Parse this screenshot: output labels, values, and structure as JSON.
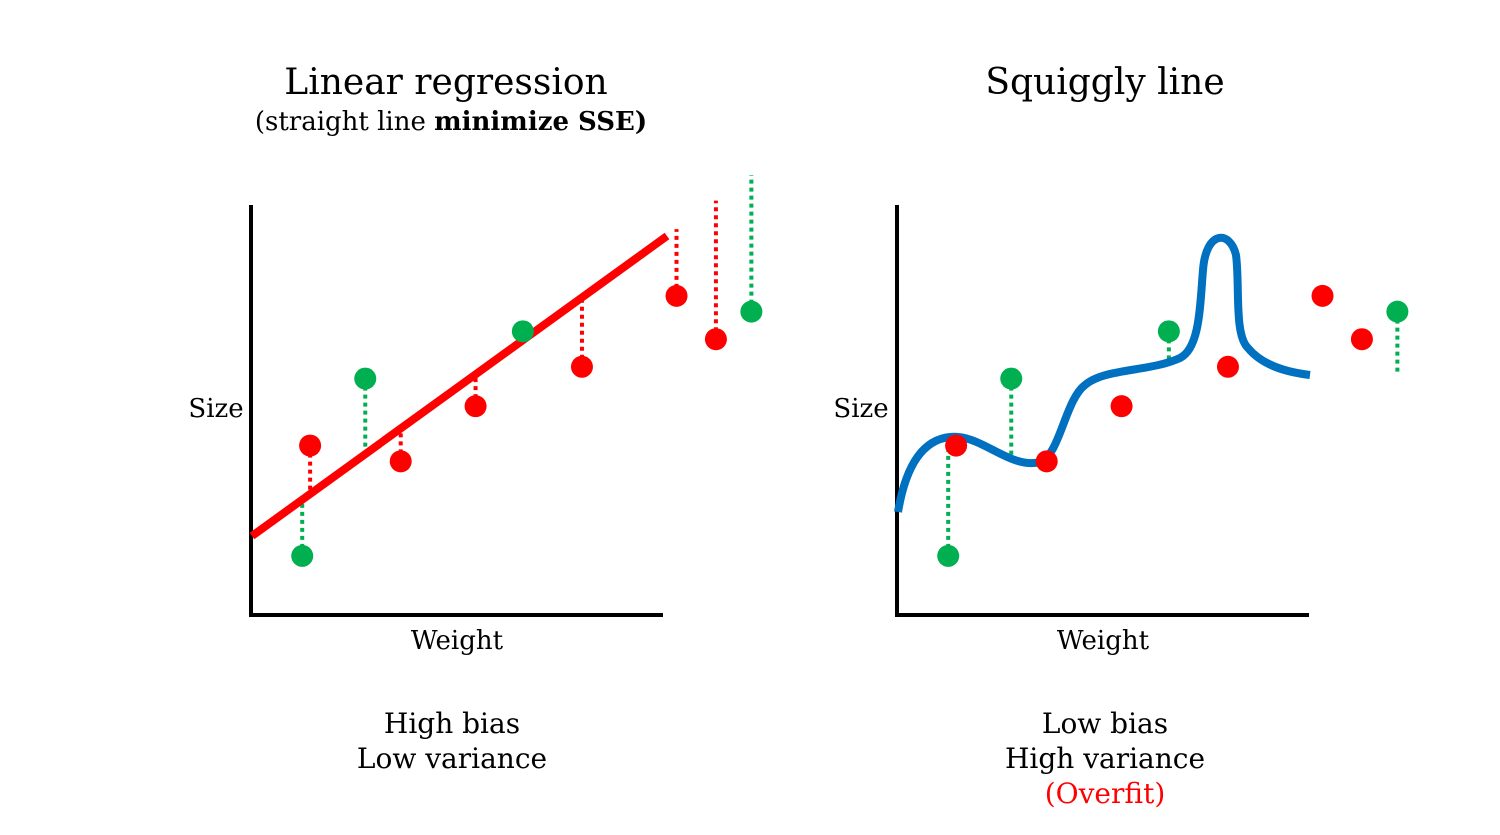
{
  "left_panel": {
    "title": "Linear regression",
    "subtitle_plain": "(straight line ",
    "subtitle_bold": "minimize SSE)",
    "x_label": "Weight",
    "y_label": "Size",
    "verdict": [
      "High bias",
      "Low variance"
    ]
  },
  "right_panel": {
    "title": "Squiggly line",
    "x_label": "Weight",
    "y_label": "Size",
    "verdict": [
      "Low bias",
      "High variance"
    ],
    "note": "(Overfit)"
  },
  "colors": {
    "train_point": "#ff0000",
    "test_point": "#00b050",
    "linear_fit": "#ff0000",
    "squiggle_fit": "#0070c0",
    "axis": "#000000",
    "note": "#ff0000"
  },
  "chart_data": [
    {
      "type": "scatter",
      "title": "Linear regression",
      "xlabel": "Weight",
      "ylabel": "Size",
      "fit": "straight line",
      "series": [
        {
          "points": [
            [
              1.5,
              4.3
            ],
            [
              3.8,
              3.9
            ],
            [
              5.7,
              5.3
            ],
            [
              8.4,
              6.3
            ],
            [
              10.8,
              8.1
            ],
            [
              11.8,
              7.0
            ]
          ]
        },
        {
          "points": [
            [
              1.3,
              1.5
            ],
            [
              2.9,
              6.0
            ],
            [
              6.9,
              7.2
            ],
            [
              12.7,
              7.7
            ]
          ]
        }
      ],
      "residuals": true
    },
    {
      "type": "scatter",
      "title": "Squiggly line",
      "xlabel": "Weight",
      "ylabel": "Size",
      "fit": "squiggly line",
      "series": [
        {
          "points": [
            [
              1.5,
              4.3
            ],
            [
              3.8,
              3.9
            ],
            [
              5.7,
              5.3
            ],
            [
              8.4,
              6.3
            ],
            [
              10.8,
              8.1
            ],
            [
              11.8,
              7.0
            ]
          ]
        },
        {
          "points": [
            [
              1.3,
              1.5
            ],
            [
              2.9,
              6.0
            ],
            [
              6.9,
              7.2
            ],
            [
              12.7,
              7.7
            ]
          ]
        }
      ],
      "residuals": true
    }
  ]
}
